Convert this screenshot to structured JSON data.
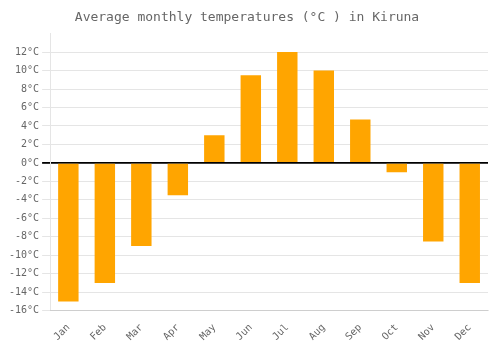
{
  "chart_data": {
    "type": "bar",
    "title": "Average monthly temperatures (°C ) in Kiruna",
    "categories": [
      "Jan",
      "Feb",
      "Mar",
      "Apr",
      "May",
      "Jun",
      "Jul",
      "Aug",
      "Sep",
      "Oct",
      "Nov",
      "Dec"
    ],
    "values": [
      -15,
      -13,
      -9,
      -3.5,
      3,
      9.5,
      12,
      10,
      4.7,
      -1,
      -8.5,
      -13
    ],
    "color": "#FFA500",
    "ylim": [
      -16,
      14
    ],
    "yticks": [
      {
        "value": -16,
        "label": "-16°C"
      },
      {
        "value": -14,
        "label": "-14°C"
      },
      {
        "value": -12,
        "label": "-12°C"
      },
      {
        "value": -10,
        "label": "-10°C"
      },
      {
        "value": -8,
        "label": "-8°C"
      },
      {
        "value": -6,
        "label": "-6°C"
      },
      {
        "value": -4,
        "label": "-4°C"
      },
      {
        "value": -2,
        "label": "-2°C"
      },
      {
        "value": 0,
        "label": "0°C"
      },
      {
        "value": 2,
        "label": "2°C"
      },
      {
        "value": 4,
        "label": "4°C"
      },
      {
        "value": 6,
        "label": "6°C"
      },
      {
        "value": 8,
        "label": "8°C"
      },
      {
        "value": 10,
        "label": "10°C"
      },
      {
        "value": 12,
        "label": "12°C"
      }
    ],
    "grid": true
  }
}
